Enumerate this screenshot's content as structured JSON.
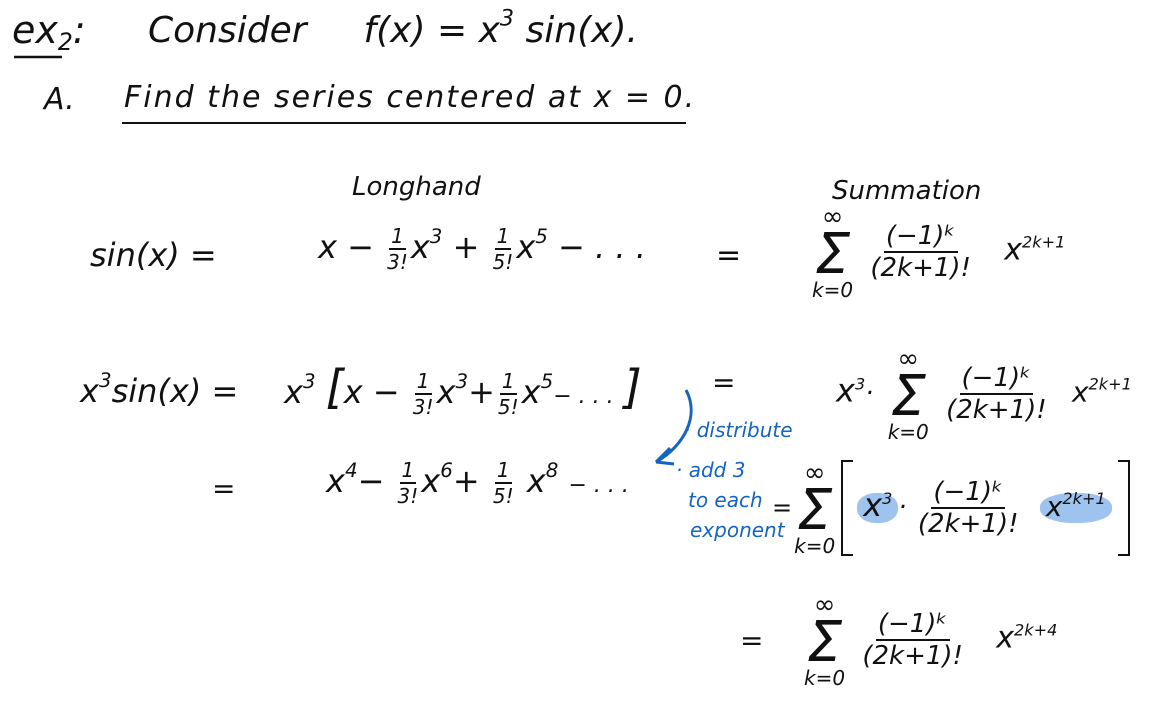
{
  "header": {
    "label": "ex",
    "label_sub": "2",
    "label_colon": ":",
    "consider": "Consider",
    "fx_left": "f(x) = x",
    "fx_exp": "3",
    "fx_right": " sin(x)."
  },
  "partA": {
    "letter": "A.",
    "text": "Find the series centered at x = 0."
  },
  "columns": {
    "longhand": "Longhand",
    "summation": "Summation"
  },
  "row1": {
    "lhs": "sin(x) =",
    "long": {
      "t1": "x −",
      "f1_num": "1",
      "f1_den": "3!",
      "x3": "x",
      "e3": "3",
      "plus": "+",
      "f2_num": "1",
      "f2_den": "5!",
      "x5": "x",
      "e5": "5",
      "tail": "− . . ."
    },
    "eq": "=",
    "sum": {
      "upper": "∞",
      "sigma": "Σ",
      "lower": "k=0",
      "num": "(−1)ᵏ",
      "den": "(2k+1)!",
      "x": "x",
      "exp": "2k+1"
    }
  },
  "row2": {
    "lhs_x": "x",
    "lhs_e": "3",
    "lhs_rest": "sin(x) =",
    "long": {
      "x": "x",
      "e": "3",
      "open": "[",
      "t1": "x −",
      "f1_num": "1",
      "f1_den": "3!",
      "x3": "x",
      "e3": "3",
      "plus": "+",
      "f2_num": "1",
      "f2_den": "5!",
      "x5": "x",
      "e5": "5",
      "tail": "− . . .",
      "close": "]"
    },
    "eq": "=",
    "sum": {
      "pre_x": "x",
      "pre_e": "3",
      "dot": "·",
      "upper": "∞",
      "sigma": "Σ",
      "lower": "k=0",
      "num": "(−1)ᵏ",
      "den": "(2k+1)!",
      "x": "x",
      "exp": "2k+1"
    }
  },
  "row3": {
    "eq": "=",
    "long": {
      "x4": "x",
      "e4": "4",
      "minus": "−",
      "f1_num": "1",
      "f1_den": "3!",
      "x6": "x",
      "e6": "6",
      "plus": "+",
      "f2_num": "1",
      "f2_den": "5!",
      "x8": "x",
      "e8": "8",
      "tail": "− . . ."
    },
    "eq2": "=",
    "sum": {
      "upper": "∞",
      "sigma": "Σ",
      "lower": "k=0",
      "x": "x",
      "e": "3",
      "dot": "·",
      "num": "(−1)ᵏ",
      "den": "(2k+1)!",
      "x2": "x",
      "exp2": "2k+1"
    }
  },
  "row4": {
    "eq": "=",
    "sum": {
      "upper": "∞",
      "sigma": "Σ",
      "lower": "k=0",
      "num": "(−1)ᵏ",
      "den": "(2k+1)!",
      "x": "x",
      "exp": "2k+4"
    }
  },
  "notes": {
    "n1": "· distribute",
    "n2": "· add 3",
    "n3": "to each",
    "n4": "exponent"
  },
  "colors": {
    "ink": "#111111",
    "annotation": "#1565c0",
    "highlight": "#9ec3ef"
  }
}
